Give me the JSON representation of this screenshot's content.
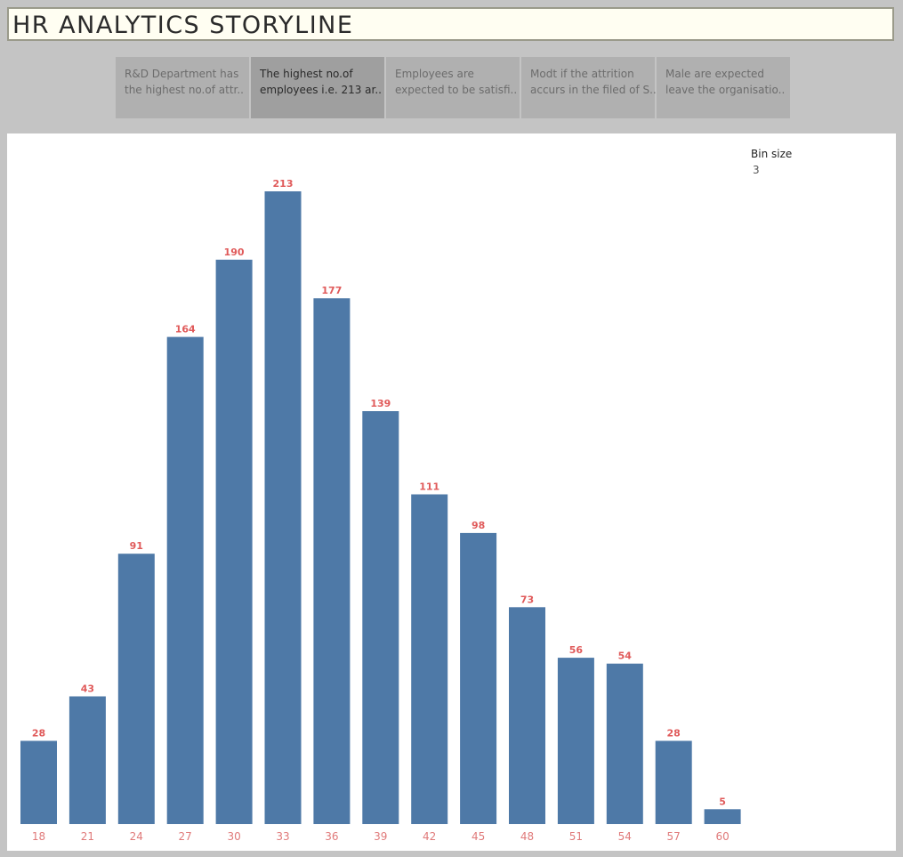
{
  "title": "HR ANALYTICS STORYLINE",
  "story_points": [
    {
      "line1": "R&D Department has",
      "line2": "the highest no.of attr..",
      "active": false
    },
    {
      "line1": "The highest no.of",
      "line2": "employees i.e. 213 ar..",
      "active": true
    },
    {
      "line1": "Employees are",
      "line2": "expected to be satisfi..",
      "active": false
    },
    {
      "line1": "Modt if the attrition",
      "line2": "accurs in the filed of S..",
      "active": false
    },
    {
      "line1": "Male are expected",
      "line2": "leave the organisatio..",
      "active": false
    }
  ],
  "parameter": {
    "label": "Bin size",
    "value": "3"
  },
  "colors": {
    "bar": "#4e79a7",
    "label": "#e05a5a",
    "tick": "#e07a7a"
  },
  "chart_data": {
    "type": "bar",
    "categories": [
      "18",
      "21",
      "24",
      "27",
      "30",
      "33",
      "36",
      "39",
      "42",
      "45",
      "48",
      "51",
      "54",
      "57",
      "60"
    ],
    "values": [
      28,
      43,
      91,
      164,
      190,
      213,
      177,
      139,
      111,
      98,
      73,
      56,
      54,
      28,
      5
    ],
    "title": "",
    "xlabel": "",
    "ylabel": "",
    "ylim": [
      0,
      213
    ],
    "grid": false
  }
}
